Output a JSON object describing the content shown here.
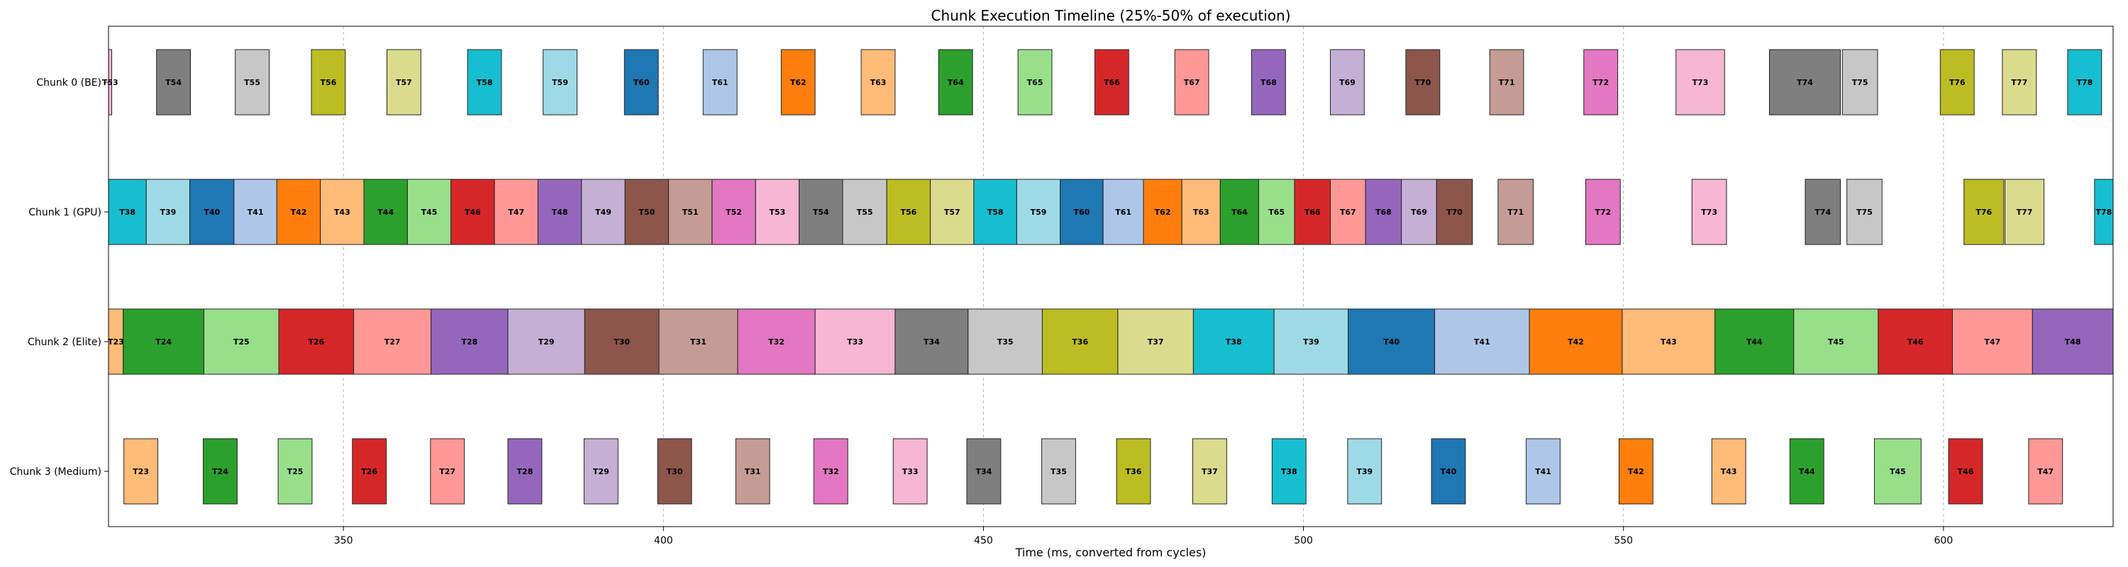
{
  "chart_data": {
    "type": "gantt",
    "title": "Chunk Execution Timeline (25%-50% of execution)",
    "xlabel": "Time (ms, converted from cycles)",
    "ylabel": "",
    "xlim": [
      313.3,
      626.5
    ],
    "xticks": [
      350,
      400,
      450,
      500,
      550,
      600
    ],
    "grid": "vertical dashed",
    "rows": [
      {
        "label": "Chunk 0 (BE)",
        "tasks": [
          {
            "name": "T53",
            "start": 313.3,
            "end": 313.8
          },
          {
            "name": "T54",
            "start": 320.8,
            "end": 326.1
          },
          {
            "name": "T55",
            "start": 333.1,
            "end": 338.4
          },
          {
            "name": "T56",
            "start": 345.0,
            "end": 350.3
          },
          {
            "name": "T57",
            "start": 356.8,
            "end": 362.1
          },
          {
            "name": "T58",
            "start": 369.4,
            "end": 374.7
          },
          {
            "name": "T59",
            "start": 381.2,
            "end": 386.5
          },
          {
            "name": "T60",
            "start": 393.9,
            "end": 399.2
          },
          {
            "name": "T61",
            "start": 406.2,
            "end": 411.5
          },
          {
            "name": "T62",
            "start": 418.4,
            "end": 423.7
          },
          {
            "name": "T63",
            "start": 430.9,
            "end": 436.2
          },
          {
            "name": "T64",
            "start": 443.0,
            "end": 448.3
          },
          {
            "name": "T65",
            "start": 455.4,
            "end": 460.7
          },
          {
            "name": "T66",
            "start": 467.4,
            "end": 472.7
          },
          {
            "name": "T67",
            "start": 479.9,
            "end": 485.2
          },
          {
            "name": "T68",
            "start": 491.9,
            "end": 497.2
          },
          {
            "name": "T69",
            "start": 504.2,
            "end": 509.5
          },
          {
            "name": "T70",
            "start": 516.0,
            "end": 521.3
          },
          {
            "name": "T71",
            "start": 529.1,
            "end": 534.4
          },
          {
            "name": "T72",
            "start": 543.8,
            "end": 549.1
          },
          {
            "name": "T73",
            "start": 558.2,
            "end": 565.8
          },
          {
            "name": "T74",
            "start": 572.8,
            "end": 583.9
          },
          {
            "name": "T75",
            "start": 584.2,
            "end": 589.7
          },
          {
            "name": "T76",
            "start": 599.5,
            "end": 604.8
          },
          {
            "name": "T77",
            "start": 609.2,
            "end": 614.5
          },
          {
            "name": "T78",
            "start": 619.4,
            "end": 624.7
          }
        ]
      },
      {
        "label": "Chunk 1 (GPU)",
        "tasks": [
          {
            "name": "T38",
            "start": 313.3,
            "end": 319.2
          },
          {
            "name": "T39",
            "start": 319.2,
            "end": 326.0
          },
          {
            "name": "T40",
            "start": 326.0,
            "end": 332.9
          },
          {
            "name": "T41",
            "start": 332.9,
            "end": 339.6
          },
          {
            "name": "T42",
            "start": 339.6,
            "end": 346.4
          },
          {
            "name": "T43",
            "start": 346.4,
            "end": 353.2
          },
          {
            "name": "T44",
            "start": 353.2,
            "end": 360.0
          },
          {
            "name": "T45",
            "start": 360.0,
            "end": 366.8
          },
          {
            "name": "T46",
            "start": 366.8,
            "end": 373.6
          },
          {
            "name": "T47",
            "start": 373.6,
            "end": 380.4
          },
          {
            "name": "T48",
            "start": 380.4,
            "end": 387.2
          },
          {
            "name": "T49",
            "start": 387.2,
            "end": 394.0
          },
          {
            "name": "T50",
            "start": 394.0,
            "end": 400.8
          },
          {
            "name": "T51",
            "start": 400.8,
            "end": 407.6
          },
          {
            "name": "T52",
            "start": 407.6,
            "end": 414.4
          },
          {
            "name": "T53",
            "start": 414.4,
            "end": 421.2
          },
          {
            "name": "T54",
            "start": 421.2,
            "end": 428.0
          },
          {
            "name": "T55",
            "start": 428.0,
            "end": 434.9
          },
          {
            "name": "T56",
            "start": 434.9,
            "end": 441.7
          },
          {
            "name": "T57",
            "start": 441.7,
            "end": 448.5
          },
          {
            "name": "T58",
            "start": 448.5,
            "end": 455.2
          },
          {
            "name": "T59",
            "start": 455.2,
            "end": 462.0
          },
          {
            "name": "T60",
            "start": 462.0,
            "end": 468.7
          },
          {
            "name": "T61",
            "start": 468.7,
            "end": 475.0
          },
          {
            "name": "T62",
            "start": 475.0,
            "end": 481.0
          },
          {
            "name": "T63",
            "start": 481.0,
            "end": 487.0
          },
          {
            "name": "T64",
            "start": 487.0,
            "end": 493.0
          },
          {
            "name": "T65",
            "start": 493.0,
            "end": 498.6
          },
          {
            "name": "T66",
            "start": 498.6,
            "end": 504.2
          },
          {
            "name": "T67",
            "start": 504.2,
            "end": 509.7
          },
          {
            "name": "T68",
            "start": 509.7,
            "end": 515.3
          },
          {
            "name": "T69",
            "start": 515.3,
            "end": 520.8
          },
          {
            "name": "T70",
            "start": 520.8,
            "end": 526.4
          },
          {
            "name": "T71",
            "start": 530.4,
            "end": 535.9
          },
          {
            "name": "T72",
            "start": 544.1,
            "end": 549.5
          },
          {
            "name": "T73",
            "start": 560.7,
            "end": 566.1
          },
          {
            "name": "T74",
            "start": 578.4,
            "end": 583.9
          },
          {
            "name": "T75",
            "start": 584.9,
            "end": 590.4
          },
          {
            "name": "T76",
            "start": 603.2,
            "end": 609.4
          },
          {
            "name": "T77",
            "start": 609.6,
            "end": 615.7
          },
          {
            "name": "T78",
            "start": 623.6,
            "end": 629.0
          }
        ]
      },
      {
        "label": "Chunk 2 (Elite)",
        "tasks": [
          {
            "name": "T23",
            "start": 313.3,
            "end": 315.6
          },
          {
            "name": "T24",
            "start": 315.6,
            "end": 328.2
          },
          {
            "name": "T25",
            "start": 328.2,
            "end": 339.9
          },
          {
            "name": "T26",
            "start": 339.9,
            "end": 351.6
          },
          {
            "name": "T27",
            "start": 351.6,
            "end": 363.7
          },
          {
            "name": "T28",
            "start": 363.7,
            "end": 375.7
          },
          {
            "name": "T29",
            "start": 375.7,
            "end": 387.7
          },
          {
            "name": "T30",
            "start": 387.7,
            "end": 399.3
          },
          {
            "name": "T31",
            "start": 399.3,
            "end": 411.6
          },
          {
            "name": "T32",
            "start": 411.6,
            "end": 423.7
          },
          {
            "name": "T33",
            "start": 423.7,
            "end": 436.2
          },
          {
            "name": "T34",
            "start": 436.2,
            "end": 447.6
          },
          {
            "name": "T35",
            "start": 447.6,
            "end": 459.2
          },
          {
            "name": "T36",
            "start": 459.2,
            "end": 471.0
          },
          {
            "name": "T37",
            "start": 471.0,
            "end": 482.8
          },
          {
            "name": "T38",
            "start": 482.8,
            "end": 495.4
          },
          {
            "name": "T39",
            "start": 495.4,
            "end": 507.0
          },
          {
            "name": "T40",
            "start": 507.0,
            "end": 520.5
          },
          {
            "name": "T41",
            "start": 520.5,
            "end": 535.3
          },
          {
            "name": "T42",
            "start": 535.3,
            "end": 549.8
          },
          {
            "name": "T43",
            "start": 549.8,
            "end": 564.3
          },
          {
            "name": "T44",
            "start": 564.3,
            "end": 576.6
          },
          {
            "name": "T45",
            "start": 576.6,
            "end": 589.8
          },
          {
            "name": "T46",
            "start": 589.8,
            "end": 601.4
          },
          {
            "name": "T47",
            "start": 601.4,
            "end": 613.9
          },
          {
            "name": "T48",
            "start": 613.9,
            "end": 626.5
          }
        ]
      },
      {
        "label": "Chunk 3 (Medium)",
        "tasks": [
          {
            "name": "T23",
            "start": 315.7,
            "end": 321.0
          },
          {
            "name": "T24",
            "start": 328.1,
            "end": 333.4
          },
          {
            "name": "T25",
            "start": 339.8,
            "end": 345.1
          },
          {
            "name": "T26",
            "start": 351.4,
            "end": 356.7
          },
          {
            "name": "T27",
            "start": 363.6,
            "end": 368.9
          },
          {
            "name": "T28",
            "start": 375.7,
            "end": 381.0
          },
          {
            "name": "T29",
            "start": 387.6,
            "end": 392.9
          },
          {
            "name": "T30",
            "start": 399.1,
            "end": 404.4
          },
          {
            "name": "T31",
            "start": 411.3,
            "end": 416.6
          },
          {
            "name": "T32",
            "start": 423.5,
            "end": 428.8
          },
          {
            "name": "T33",
            "start": 435.9,
            "end": 441.2
          },
          {
            "name": "T34",
            "start": 447.4,
            "end": 452.7
          },
          {
            "name": "T35",
            "start": 459.1,
            "end": 464.4
          },
          {
            "name": "T36",
            "start": 470.8,
            "end": 476.1
          },
          {
            "name": "T37",
            "start": 482.7,
            "end": 488.0
          },
          {
            "name": "T38",
            "start": 495.1,
            "end": 500.4
          },
          {
            "name": "T39",
            "start": 506.9,
            "end": 512.2
          },
          {
            "name": "T40",
            "start": 520.0,
            "end": 525.3
          },
          {
            "name": "T41",
            "start": 534.8,
            "end": 540.1
          },
          {
            "name": "T42",
            "start": 549.3,
            "end": 554.6
          },
          {
            "name": "T43",
            "start": 563.8,
            "end": 569.1
          },
          {
            "name": "T44",
            "start": 576.0,
            "end": 581.3
          },
          {
            "name": "T45",
            "start": 589.2,
            "end": 596.5
          },
          {
            "name": "T46",
            "start": 600.8,
            "end": 606.1
          },
          {
            "name": "T47",
            "start": 613.3,
            "end": 618.6
          }
        ]
      }
    ]
  },
  "colors": [
    "#1f77b4",
    "#aec7e8",
    "#ff7f0e",
    "#ffbb78",
    "#2ca02c",
    "#98df8a",
    "#d62728",
    "#ff9896",
    "#9467bd",
    "#c5b0d5",
    "#8c564b",
    "#c49c94",
    "#e377c2",
    "#f7b6d2",
    "#7f7f7f",
    "#c7c7c7",
    "#bcbd22",
    "#dbdb8d",
    "#17becf",
    "#9edae5"
  ]
}
